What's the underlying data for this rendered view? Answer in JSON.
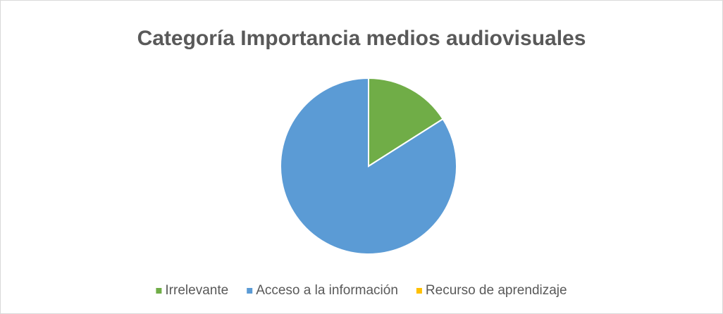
{
  "chart_data": {
    "type": "pie",
    "title": "Categoría Importancia medios audiovisuales",
    "categories": [
      "Irrelevante",
      "Acceso a la información",
      "Recurso de aprendizaje"
    ],
    "values": [
      16,
      84,
      0
    ],
    "colors": [
      "#70ad47",
      "#5b9bd5",
      "#ffc000"
    ],
    "legend": "bottom"
  }
}
